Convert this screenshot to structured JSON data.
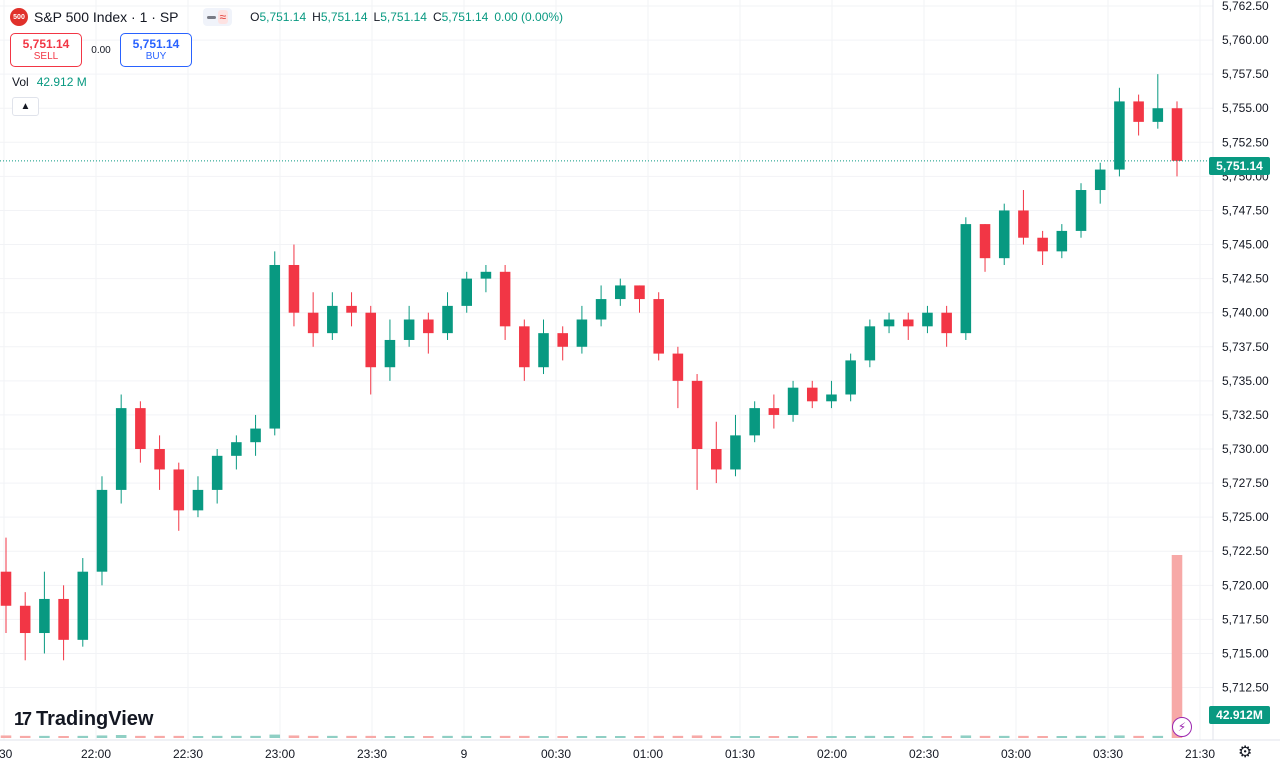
{
  "header": {
    "logo_text": "500",
    "symbol_title": "S&P 500 Index · 1 · SP",
    "ohlc": [
      {
        "key": "O",
        "value": "5,751.14"
      },
      {
        "key": "H",
        "value": "5,751.14"
      },
      {
        "key": "L",
        "value": "5,751.14"
      },
      {
        "key": "C",
        "value": "5,751.14"
      }
    ],
    "change": "0.00 (0.00%)"
  },
  "trade": {
    "sell_price": "5,751.14",
    "sell_label": "SELL",
    "spread": "0.00",
    "buy_price": "5,751.14",
    "buy_label": "BUY"
  },
  "volume_legend": {
    "label": "Vol",
    "value": "42.912 M"
  },
  "branding": {
    "name": "TradingView"
  },
  "price_tags": {
    "last": "5,751.14",
    "volume": "42.912M"
  },
  "colors": {
    "up": "#089981",
    "down": "#f23645",
    "volume_up": "#8fcfc4",
    "volume_down": "#f7a9a7",
    "grid": "#f2f3f6"
  },
  "icons": [
    "sp500-logo-icon",
    "eye-icon",
    "wave-icon",
    "chevron-up-icon",
    "gear-icon",
    "lightning-icon"
  ],
  "chart_data": {
    "type": "candlestick",
    "title": "S&P 500 Index · 1 · SP",
    "y_ticks": [
      "5,762.50",
      "5,760.00",
      "5,757.50",
      "5,755.00",
      "5,752.50",
      "5,750.00",
      "5,747.50",
      "5,745.00",
      "5,742.50",
      "5,740.00",
      "5,737.50",
      "5,735.00",
      "5,732.50",
      "5,730.00",
      "5,727.50",
      "5,725.00",
      "5,722.50",
      "5,720.00",
      "5,717.50",
      "5,715.00",
      "5,712.50"
    ],
    "x_ticks": [
      ":30",
      "22:00",
      "22:30",
      "23:00",
      "23:30",
      "9",
      "00:30",
      "01:00",
      "01:30",
      "02:00",
      "02:30",
      "03:00",
      "03:30",
      "21:30"
    ],
    "ylim": [
      5711.0,
      5762.5
    ],
    "grid": true,
    "last_price": 5751.14,
    "last_volume": "42.912M",
    "candles": [
      {
        "t": "21:30",
        "o": 5721.0,
        "c": 5718.5,
        "h": 5723.5,
        "l": 5716.5
      },
      {
        "t": "21:35",
        "o": 5718.5,
        "c": 5716.5,
        "h": 5719.5,
        "l": 5714.5
      },
      {
        "t": "21:40",
        "o": 5716.5,
        "c": 5719.0,
        "h": 5721.0,
        "l": 5715.0
      },
      {
        "t": "21:45",
        "o": 5719.0,
        "c": 5716.0,
        "h": 5720.0,
        "l": 5714.5
      },
      {
        "t": "21:50",
        "o": 5716.0,
        "c": 5721.0,
        "h": 5722.0,
        "l": 5715.5
      },
      {
        "t": "21:55",
        "o": 5721.0,
        "c": 5727.0,
        "h": 5728.0,
        "l": 5720.0
      },
      {
        "t": "22:00",
        "o": 5727.0,
        "c": 5733.0,
        "h": 5734.0,
        "l": 5726.0
      },
      {
        "t": "22:05",
        "o": 5733.0,
        "c": 5730.0,
        "h": 5733.5,
        "l": 5729.0
      },
      {
        "t": "22:10",
        "o": 5730.0,
        "c": 5728.5,
        "h": 5731.0,
        "l": 5727.0
      },
      {
        "t": "22:15",
        "o": 5728.5,
        "c": 5725.5,
        "h": 5729.0,
        "l": 5724.0
      },
      {
        "t": "22:20",
        "o": 5725.5,
        "c": 5727.0,
        "h": 5728.0,
        "l": 5725.0
      },
      {
        "t": "22:25",
        "o": 5727.0,
        "c": 5729.5,
        "h": 5730.0,
        "l": 5726.0
      },
      {
        "t": "22:30",
        "o": 5729.5,
        "c": 5730.5,
        "h": 5731.0,
        "l": 5728.5
      },
      {
        "t": "22:35",
        "o": 5730.5,
        "c": 5731.5,
        "h": 5732.5,
        "l": 5729.5
      },
      {
        "t": "22:40",
        "o": 5731.5,
        "c": 5743.5,
        "h": 5744.5,
        "l": 5731.0
      },
      {
        "t": "22:45",
        "o": 5743.5,
        "c": 5740.0,
        "h": 5745.0,
        "l": 5739.0
      },
      {
        "t": "22:50",
        "o": 5740.0,
        "c": 5738.5,
        "h": 5741.5,
        "l": 5737.5
      },
      {
        "t": "22:55",
        "o": 5738.5,
        "c": 5740.5,
        "h": 5741.5,
        "l": 5738.0
      },
      {
        "t": "23:00",
        "o": 5740.5,
        "c": 5740.0,
        "h": 5741.5,
        "l": 5739.0
      },
      {
        "t": "23:05",
        "o": 5740.0,
        "c": 5736.0,
        "h": 5740.5,
        "l": 5734.0
      },
      {
        "t": "23:10",
        "o": 5736.0,
        "c": 5738.0,
        "h": 5739.5,
        "l": 5735.0
      },
      {
        "t": "23:15",
        "o": 5738.0,
        "c": 5739.5,
        "h": 5740.5,
        "l": 5737.5
      },
      {
        "t": "23:20",
        "o": 5739.5,
        "c": 5738.5,
        "h": 5740.0,
        "l": 5737.0
      },
      {
        "t": "23:25",
        "o": 5738.5,
        "c": 5740.5,
        "h": 5741.5,
        "l": 5738.0
      },
      {
        "t": "23:30",
        "o": 5740.5,
        "c": 5742.5,
        "h": 5743.0,
        "l": 5740.0
      },
      {
        "t": "23:35",
        "o": 5742.5,
        "c": 5743.0,
        "h": 5743.5,
        "l": 5741.5
      },
      {
        "t": "23:40",
        "o": 5743.0,
        "c": 5739.0,
        "h": 5743.5,
        "l": 5738.0
      },
      {
        "t": "23:45",
        "o": 5739.0,
        "c": 5736.0,
        "h": 5739.5,
        "l": 5735.0
      },
      {
        "t": "23:50",
        "o": 5736.0,
        "c": 5738.5,
        "h": 5739.5,
        "l": 5735.5
      },
      {
        "t": "23:55",
        "o": 5738.5,
        "c": 5737.5,
        "h": 5739.0,
        "l": 5736.5
      },
      {
        "t": "00:00",
        "o": 5737.5,
        "c": 5739.5,
        "h": 5740.5,
        "l": 5737.0
      },
      {
        "t": "00:05",
        "o": 5739.5,
        "c": 5741.0,
        "h": 5742.0,
        "l": 5739.0
      },
      {
        "t": "00:10",
        "o": 5741.0,
        "c": 5742.0,
        "h": 5742.5,
        "l": 5740.5
      },
      {
        "t": "00:15",
        "o": 5742.0,
        "c": 5741.0,
        "h": 5742.0,
        "l": 5740.0
      },
      {
        "t": "00:20",
        "o": 5741.0,
        "c": 5737.0,
        "h": 5741.5,
        "l": 5736.5
      },
      {
        "t": "00:25",
        "o": 5737.0,
        "c": 5735.0,
        "h": 5737.5,
        "l": 5733.0
      },
      {
        "t": "00:30",
        "o": 5735.0,
        "c": 5730.0,
        "h": 5735.5,
        "l": 5727.0
      },
      {
        "t": "00:35",
        "o": 5730.0,
        "c": 5728.5,
        "h": 5732.0,
        "l": 5727.5
      },
      {
        "t": "00:40",
        "o": 5728.5,
        "c": 5731.0,
        "h": 5732.5,
        "l": 5728.0
      },
      {
        "t": "00:45",
        "o": 5731.0,
        "c": 5733.0,
        "h": 5733.5,
        "l": 5730.5
      },
      {
        "t": "00:50",
        "o": 5733.0,
        "c": 5732.5,
        "h": 5734.0,
        "l": 5731.5
      },
      {
        "t": "00:55",
        "o": 5732.5,
        "c": 5734.5,
        "h": 5735.0,
        "l": 5732.0
      },
      {
        "t": "01:00",
        "o": 5734.5,
        "c": 5733.5,
        "h": 5735.0,
        "l": 5733.0
      },
      {
        "t": "01:05",
        "o": 5733.5,
        "c": 5734.0,
        "h": 5735.0,
        "l": 5733.0
      },
      {
        "t": "01:10",
        "o": 5734.0,
        "c": 5736.5,
        "h": 5737.0,
        "l": 5733.5
      },
      {
        "t": "01:15",
        "o": 5736.5,
        "c": 5739.0,
        "h": 5739.5,
        "l": 5736.0
      },
      {
        "t": "01:20",
        "o": 5739.0,
        "c": 5739.5,
        "h": 5740.0,
        "l": 5738.5
      },
      {
        "t": "01:25",
        "o": 5739.5,
        "c": 5739.0,
        "h": 5740.0,
        "l": 5738.0
      },
      {
        "t": "01:30",
        "o": 5739.0,
        "c": 5740.0,
        "h": 5740.5,
        "l": 5738.5
      },
      {
        "t": "01:35",
        "o": 5740.0,
        "c": 5738.5,
        "h": 5740.5,
        "l": 5737.5
      },
      {
        "t": "01:40",
        "o": 5738.5,
        "c": 5746.5,
        "h": 5747.0,
        "l": 5738.0
      },
      {
        "t": "01:45",
        "o": 5746.5,
        "c": 5744.0,
        "h": 5746.5,
        "l": 5743.0
      },
      {
        "t": "01:50",
        "o": 5744.0,
        "c": 5747.5,
        "h": 5748.0,
        "l": 5743.5
      },
      {
        "t": "01:55",
        "o": 5747.5,
        "c": 5745.5,
        "h": 5749.0,
        "l": 5745.0
      },
      {
        "t": "02:00",
        "o": 5745.5,
        "c": 5744.5,
        "h": 5746.0,
        "l": 5743.5
      },
      {
        "t": "02:05",
        "o": 5744.5,
        "c": 5746.0,
        "h": 5746.5,
        "l": 5744.0
      },
      {
        "t": "02:10",
        "o": 5746.0,
        "c": 5749.0,
        "h": 5749.5,
        "l": 5745.5
      },
      {
        "t": "02:15",
        "o": 5749.0,
        "c": 5750.5,
        "h": 5751.0,
        "l": 5748.0
      },
      {
        "t": "02:20",
        "o": 5750.5,
        "c": 5755.5,
        "h": 5756.5,
        "l": 5750.0
      },
      {
        "t": "02:25",
        "o": 5755.5,
        "c": 5754.0,
        "h": 5756.0,
        "l": 5753.0
      },
      {
        "t": "02:30",
        "o": 5754.0,
        "c": 5755.0,
        "h": 5757.5,
        "l": 5753.5
      },
      {
        "t": "02:35",
        "o": 5755.0,
        "c": 5751.14,
        "h": 5755.5,
        "l": 5750.0
      }
    ],
    "volumes": [
      0.6,
      0.5,
      0.5,
      0.4,
      0.5,
      0.6,
      0.7,
      0.5,
      0.5,
      0.5,
      0.4,
      0.5,
      0.5,
      0.5,
      0.8,
      0.6,
      0.5,
      0.5,
      0.5,
      0.5,
      0.4,
      0.4,
      0.4,
      0.5,
      0.5,
      0.4,
      0.5,
      0.5,
      0.4,
      0.4,
      0.4,
      0.4,
      0.4,
      0.4,
      0.5,
      0.5,
      0.6,
      0.5,
      0.4,
      0.4,
      0.4,
      0.4,
      0.4,
      0.4,
      0.4,
      0.5,
      0.4,
      0.4,
      0.4,
      0.4,
      0.6,
      0.5,
      0.5,
      0.5,
      0.4,
      0.4,
      0.5,
      0.5,
      0.6,
      0.5,
      0.5,
      42.912
    ]
  }
}
